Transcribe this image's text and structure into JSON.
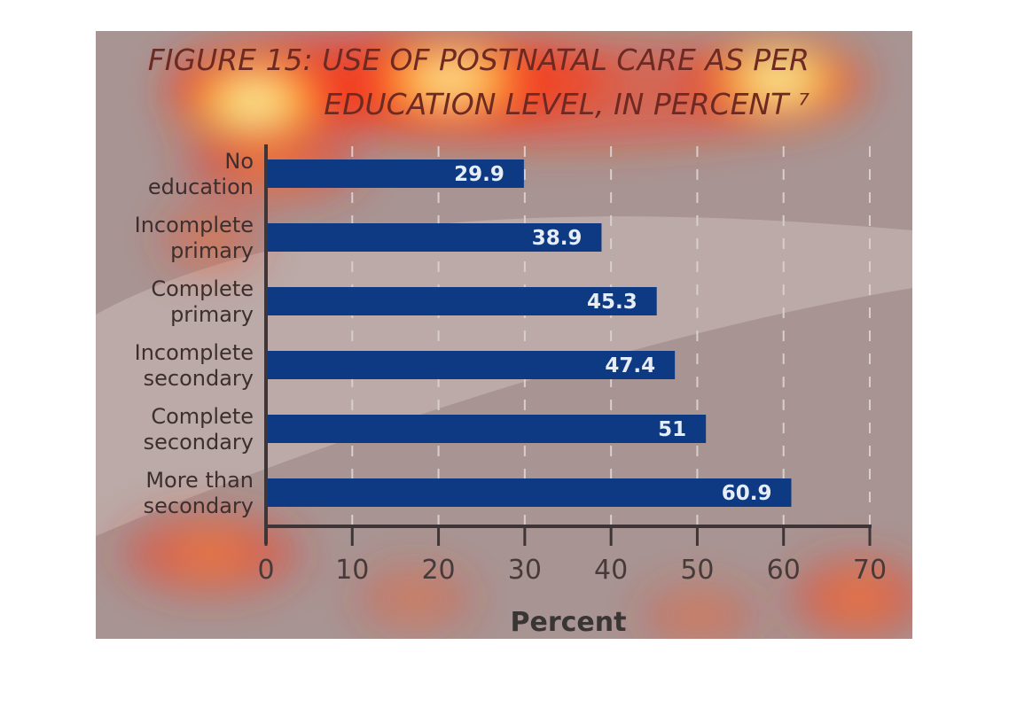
{
  "chart_data": {
    "type": "bar",
    "orientation": "horizontal",
    "title_lines": [
      "FIGURE 15: USE OF POSTNATAL CARE AS PER",
      "EDUCATION LEVEL, IN PERCENT ⁷"
    ],
    "categories": [
      [
        "No",
        "education"
      ],
      [
        "Incomplete",
        "primary"
      ],
      [
        "Complete",
        "primary"
      ],
      [
        "Incomplete",
        "secondary"
      ],
      [
        "Complete",
        "secondary"
      ],
      [
        "More than",
        "secondary"
      ]
    ],
    "values": [
      29.9,
      38.9,
      45.3,
      47.4,
      51,
      60.9
    ],
    "value_labels": [
      "29.9",
      "38.9",
      "45.3",
      "47.4",
      "51",
      "60.9"
    ],
    "xlabel": "Percent",
    "xlim": [
      0,
      70
    ],
    "xticks": [
      0,
      10,
      20,
      30,
      40,
      50,
      60,
      70
    ],
    "grid": "vertical-dashed",
    "bar_color": "#0d3a82",
    "overlay": "attention heatmap"
  }
}
